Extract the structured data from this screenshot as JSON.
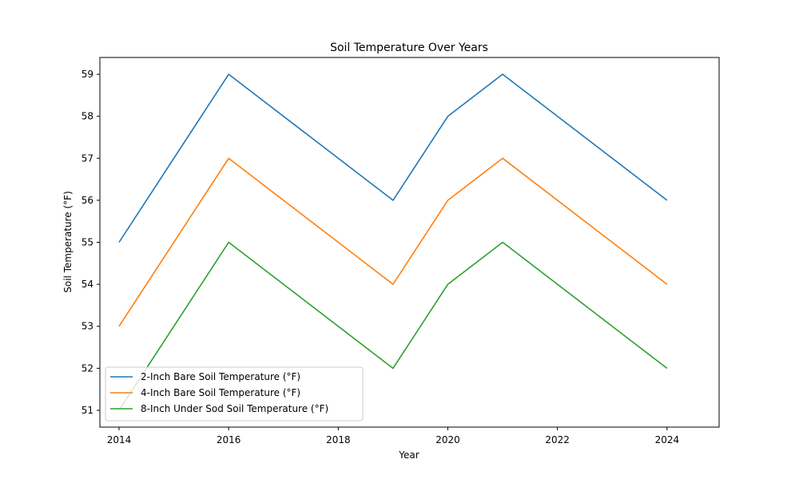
{
  "chart_data": {
    "type": "line",
    "title": "Soil Temperature Over Years",
    "xlabel": "Year",
    "ylabel": "Soil Temperature (°F)",
    "x": [
      2014,
      2016,
      2019,
      2020,
      2021,
      2024
    ],
    "xlim": [
      2013.65,
      2024.95
    ],
    "ylim": [
      50.6,
      59.4
    ],
    "xticks": [
      2014,
      2016,
      2018,
      2020,
      2022,
      2024
    ],
    "yticks": [
      51,
      52,
      53,
      54,
      55,
      56,
      57,
      58,
      59
    ],
    "grid": false,
    "legend_position": "lower-left",
    "series": [
      {
        "name": "2-Inch Bare Soil Temperature (°F)",
        "color": "#1f77b4",
        "values": [
          55,
          59,
          56,
          58,
          59,
          56
        ]
      },
      {
        "name": "4-Inch Bare Soil Temperature (°F)",
        "color": "#ff7f0e",
        "values": [
          53,
          57,
          54,
          56,
          57,
          54
        ]
      },
      {
        "name": "8-Inch Under Sod Soil Temperature (°F)",
        "color": "#2ca02c",
        "values": [
          51,
          55,
          52,
          54,
          55,
          52
        ]
      }
    ]
  }
}
